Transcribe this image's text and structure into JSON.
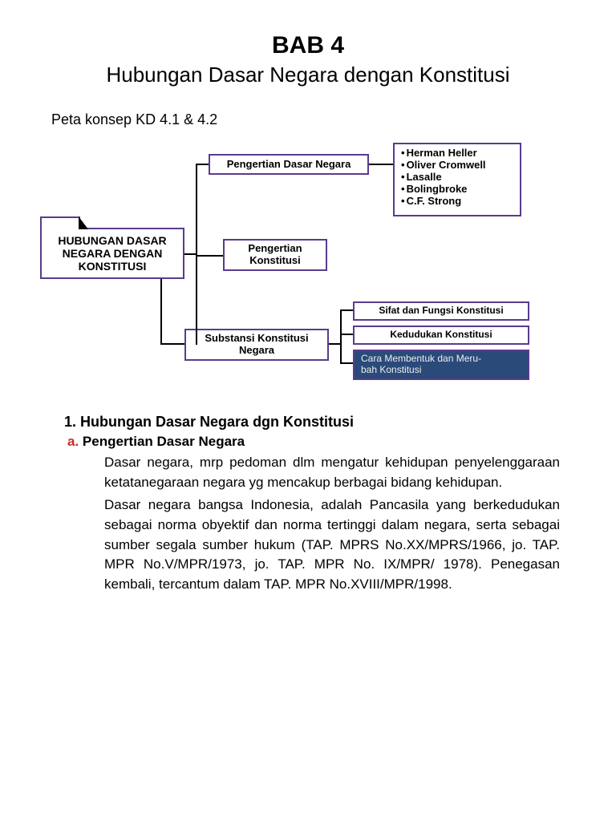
{
  "header": {
    "chapter": "BAB 4",
    "title": "Hubungan Dasar Negara dengan Konstitusi",
    "subtitle": "Peta konsep KD 4.1 & 4.2"
  },
  "diagram": {
    "border_color": "#5a3b8e",
    "dark_bg": "#2a4a7a",
    "main": "HUBUNGAN DASAR NEGARA DENGAN KONSTITUSI",
    "branch1": {
      "label": "Pengertian Dasar Negara",
      "items": [
        "Herman Heller",
        "Oliver Cromwell",
        "Lasalle",
        "Bolingbroke",
        "C.F. Strong"
      ]
    },
    "branch2": {
      "label": "Pengertian Konstitusi"
    },
    "branch3": {
      "label": "Substansi Konstitusi Negara",
      "sub": [
        "Sifat dan Fungsi Konstitusi",
        "Kedudukan Konstitusi",
        "Cara Membentuk dan Meru-bah Konstitusi"
      ]
    }
  },
  "body": {
    "h1": "1. Hubungan Dasar Negara dgn Konstitusi",
    "h2_prefix": "a",
    "h2": "Pengertian Dasar Negara",
    "p1": "Dasar negara, mrp pedoman dlm mengatur kehidupan penyelenggaraan ketatanegaraan negara yg mencakup berbagai bidang kehidupan.",
    "p2": "Dasar negara bangsa Indonesia, adalah Pancasila yang berkedudukan sebagai norma obyektif dan norma tertinggi dalam negara, serta sebagai sumber segala sumber hukum (TAP. MPRS No.XX/MPRS/1966, jo. TAP. MPR No.V/MPR/1973, jo. TAP. MPR No. IX/MPR/ 1978). Penegasan kembali, tercantum dalam TAP. MPR No.XVIII/MPR/1998."
  },
  "colors": {
    "h2_prefix": "#c03030"
  }
}
